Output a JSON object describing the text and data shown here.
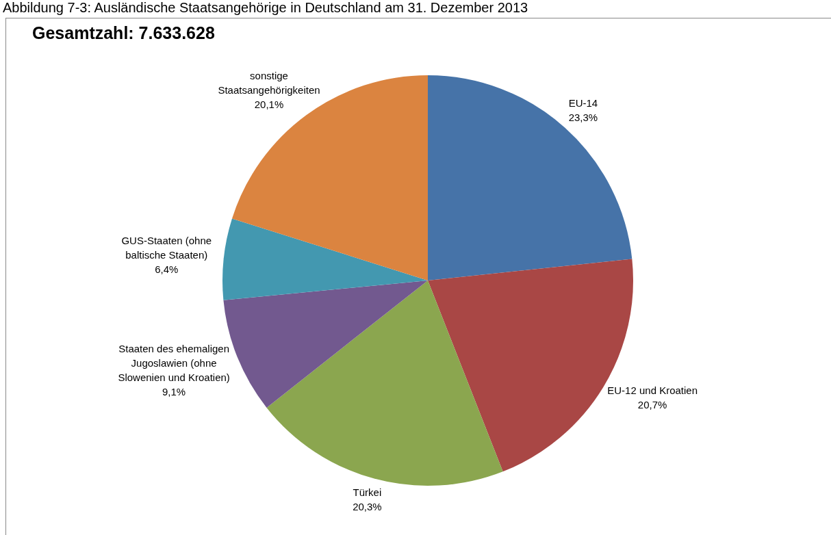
{
  "chart_data": {
    "type": "pie",
    "title": "Abbildung 7-3: Ausländische Staatsangehörige in Deutschland am 31. Dezember 2013",
    "subtitle": "Gesamtzahl: 7.633.628",
    "categories": [
      "EU-14",
      "EU-12 und Kroatien",
      "Türkei",
      "Staaten des ehemaligen Jugoslawien (ohne Slowenien und Kroatien)",
      "GUS-Staaten (ohne baltische Staaten)",
      "sonstige Staatsangehörigkeiten"
    ],
    "values": [
      23.3,
      20.7,
      20.3,
      9.1,
      6.4,
      20.1
    ],
    "value_labels": [
      "23,3%",
      "20,7%",
      "20,3%",
      "9,1%",
      "6,4%",
      "20,1%"
    ],
    "colors": [
      "#4673a8",
      "#a94745",
      "#8ba64f",
      "#72598f",
      "#4398b0",
      "#db8440"
    ],
    "legend": false
  }
}
